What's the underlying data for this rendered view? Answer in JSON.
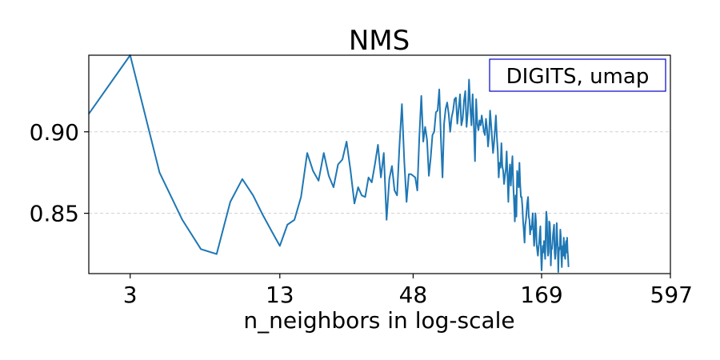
{
  "chart_data": {
    "type": "line",
    "title": "NMS",
    "xlabel": "n_neighbors in log-scale",
    "ylabel": "",
    "x_scale": "log",
    "xlim": [
      2,
      597
    ],
    "ylim": [
      0.813,
      0.947
    ],
    "xticks": [
      3,
      13,
      48,
      169,
      597
    ],
    "xtick_labels": [
      "3",
      "13",
      "48",
      "169",
      "597"
    ],
    "yticks": [
      0.85,
      0.9
    ],
    "ytick_labels": [
      "0.85",
      "0.90"
    ],
    "grid": {
      "y": true,
      "x": false,
      "style": "dashed"
    },
    "legend_box": {
      "text": "DIGITS, umap",
      "placement": "top-right"
    },
    "series_color": "#1f77b4",
    "series": [
      {
        "values": [
          [
            2,
            0.911
          ],
          [
            3,
            0.953
          ],
          [
            4,
            0.875
          ],
          [
            5,
            0.846
          ],
          [
            6,
            0.828
          ],
          [
            7,
            0.825
          ],
          [
            8,
            0.857
          ],
          [
            9,
            0.871
          ],
          [
            10,
            0.861
          ],
          [
            11,
            0.849
          ],
          [
            12,
            0.839
          ],
          [
            13,
            0.83
          ],
          [
            14,
            0.843
          ],
          [
            15,
            0.846
          ],
          [
            16,
            0.86
          ],
          [
            17,
            0.887
          ],
          [
            18,
            0.876
          ],
          [
            19,
            0.87
          ],
          [
            20,
            0.887
          ],
          [
            21,
            0.873
          ],
          [
            22,
            0.866
          ],
          [
            23,
            0.88
          ],
          [
            24,
            0.883
          ],
          [
            25,
            0.894
          ],
          [
            26,
            0.876
          ],
          [
            27,
            0.856
          ],
          [
            28,
            0.866
          ],
          [
            29,
            0.861
          ],
          [
            30,
            0.86
          ],
          [
            31,
            0.872
          ],
          [
            32,
            0.869
          ],
          [
            33,
            0.88
          ],
          [
            34,
            0.892
          ],
          [
            35,
            0.872
          ],
          [
            36,
            0.887
          ],
          [
            37,
            0.846
          ],
          [
            38,
            0.871
          ],
          [
            39,
            0.879
          ],
          [
            40,
            0.864
          ],
          [
            41,
            0.861
          ],
          [
            42,
            0.892
          ],
          [
            43,
            0.917
          ],
          [
            44,
            0.882
          ],
          [
            45,
            0.857
          ],
          [
            46,
            0.874
          ],
          [
            47,
            0.874
          ],
          [
            48,
            0.873
          ],
          [
            49,
            0.872
          ],
          [
            50,
            0.864
          ],
          [
            51,
            0.897
          ],
          [
            52,
            0.922
          ],
          [
            53,
            0.894
          ],
          [
            54,
            0.903
          ],
          [
            55,
            0.895
          ],
          [
            56,
            0.873
          ],
          [
            57,
            0.884
          ],
          [
            58,
            0.898
          ],
          [
            59,
            0.9
          ],
          [
            60,
            0.912
          ],
          [
            61,
            0.913
          ],
          [
            62,
            0.926
          ],
          [
            63,
            0.896
          ],
          [
            64,
            0.872
          ],
          [
            65,
            0.905
          ],
          [
            66,
            0.914
          ],
          [
            67,
            0.918
          ],
          [
            68,
            0.911
          ],
          [
            69,
            0.9
          ],
          [
            70,
            0.909
          ],
          [
            71,
            0.913
          ],
          [
            72,
            0.92
          ],
          [
            73,
            0.921
          ],
          [
            74,
            0.905
          ],
          [
            75,
            0.914
          ],
          [
            76,
            0.923
          ],
          [
            77,
            0.904
          ],
          [
            78,
            0.908
          ],
          [
            79,
            0.919
          ],
          [
            80,
            0.925
          ],
          [
            81,
            0.903
          ],
          [
            82,
            0.912
          ],
          [
            83,
            0.932
          ],
          [
            84,
            0.915
          ],
          [
            85,
            0.904
          ],
          [
            86,
            0.923
          ],
          [
            87,
            0.904
          ],
          [
            88,
            0.882
          ],
          [
            89,
            0.92
          ],
          [
            90,
            0.905
          ],
          [
            91,
            0.901
          ],
          [
            92,
            0.907
          ],
          [
            93,
            0.904
          ],
          [
            94,
            0.91
          ],
          [
            95,
            0.905
          ],
          [
            96,
            0.9
          ],
          [
            97,
            0.898
          ],
          [
            98,
            0.908
          ],
          [
            99,
            0.902
          ],
          [
            100,
            0.891
          ],
          [
            101,
            0.898
          ],
          [
            102,
            0.913
          ],
          [
            103,
            0.905
          ],
          [
            104,
            0.896
          ],
          [
            105,
            0.887
          ],
          [
            106,
            0.893
          ],
          [
            107,
            0.901
          ],
          [
            108,
            0.91
          ],
          [
            109,
            0.897
          ],
          [
            110,
            0.888
          ],
          [
            111,
            0.872
          ],
          [
            112,
            0.881
          ],
          [
            113,
            0.878
          ],
          [
            114,
            0.893
          ],
          [
            115,
            0.879
          ],
          [
            116,
            0.876
          ],
          [
            117,
            0.868
          ],
          [
            118,
            0.873
          ],
          [
            119,
            0.877
          ],
          [
            120,
            0.888
          ],
          [
            121,
            0.873
          ],
          [
            122,
            0.857
          ],
          [
            123,
            0.874
          ],
          [
            124,
            0.88
          ],
          [
            125,
            0.867
          ],
          [
            126,
            0.877
          ],
          [
            127,
            0.885
          ],
          [
            128,
            0.868
          ],
          [
            129,
            0.857
          ],
          [
            130,
            0.845
          ],
          [
            131,
            0.861
          ],
          [
            132,
            0.848
          ],
          [
            133,
            0.876
          ],
          [
            134,
            0.873
          ],
          [
            135,
            0.866
          ],
          [
            136,
            0.881
          ],
          [
            137,
            0.868
          ],
          [
            138,
            0.86
          ],
          [
            139,
            0.86
          ],
          [
            140,
            0.854
          ],
          [
            141,
            0.845
          ],
          [
            142,
            0.839
          ],
          [
            143,
            0.832
          ],
          [
            144,
            0.843
          ],
          [
            145,
            0.846
          ],
          [
            146,
            0.852
          ],
          [
            147,
            0.857
          ],
          [
            148,
            0.86
          ],
          [
            149,
            0.848
          ],
          [
            150,
            0.846
          ],
          [
            151,
            0.837
          ],
          [
            152,
            0.842
          ],
          [
            153,
            0.84
          ],
          [
            154,
            0.845
          ],
          [
            155,
            0.85
          ],
          [
            156,
            0.839
          ],
          [
            157,
            0.83
          ],
          [
            158,
            0.835
          ],
          [
            159,
            0.85
          ],
          [
            160,
            0.845
          ],
          [
            161,
            0.831
          ],
          [
            162,
            0.827
          ],
          [
            163,
            0.824
          ],
          [
            164,
            0.829
          ],
          [
            165,
            0.832
          ],
          [
            166,
            0.838
          ],
          [
            167,
            0.842
          ],
          [
            168,
            0.825
          ],
          [
            169,
            0.815
          ],
          [
            170,
            0.824
          ],
          [
            171,
            0.83
          ],
          [
            172,
            0.826
          ],
          [
            173,
            0.833
          ],
          [
            174,
            0.828
          ],
          [
            175,
            0.822
          ],
          [
            176,
            0.839
          ],
          [
            177,
            0.851
          ],
          [
            178,
            0.847
          ],
          [
            179,
            0.83
          ],
          [
            180,
            0.824
          ],
          [
            181,
            0.826
          ],
          [
            182,
            0.845
          ],
          [
            183,
            0.844
          ],
          [
            184,
            0.838
          ],
          [
            185,
            0.818
          ],
          [
            186,
            0.829
          ],
          [
            187,
            0.828
          ],
          [
            188,
            0.832
          ],
          [
            189,
            0.837
          ],
          [
            190,
            0.84
          ],
          [
            191,
            0.843
          ],
          [
            192,
            0.826
          ],
          [
            193,
            0.822
          ],
          [
            194,
            0.825
          ],
          [
            195,
            0.833
          ],
          [
            196,
            0.844
          ],
          [
            197,
            0.836
          ],
          [
            198,
            0.829
          ],
          [
            199,
            0.814
          ],
          [
            200,
            0.826
          ],
          [
            201,
            0.829
          ],
          [
            202,
            0.828
          ],
          [
            203,
            0.84
          ],
          [
            204,
            0.836
          ],
          [
            205,
            0.824
          ],
          [
            206,
            0.817
          ],
          [
            207,
            0.827
          ],
          [
            208,
            0.83
          ],
          [
            209,
            0.824
          ],
          [
            210,
            0.835
          ],
          [
            211,
            0.827
          ],
          [
            212,
            0.824
          ],
          [
            213,
            0.822
          ],
          [
            214,
            0.831
          ],
          [
            215,
            0.833
          ],
          [
            216,
            0.826
          ],
          [
            217,
            0.835
          ],
          [
            218,
            0.827
          ],
          [
            219,
            0.823
          ],
          [
            220,
            0.817
          ]
        ]
      }
    ]
  }
}
